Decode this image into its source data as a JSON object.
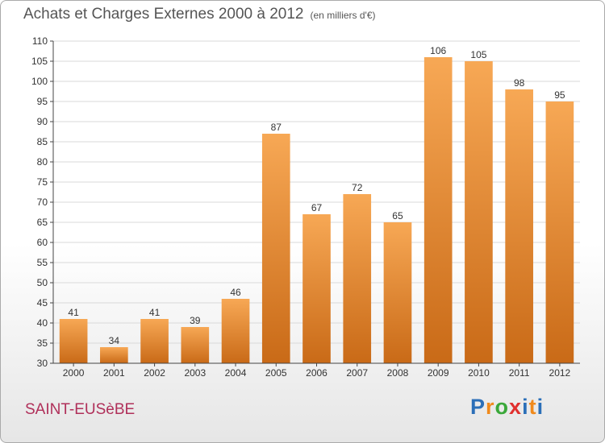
{
  "header": {
    "title": "Achats et Charges Externes 2000 à 2012",
    "subtitle": "(en milliers d'€)"
  },
  "footer": {
    "commune": "SAINT-EUSèBE",
    "logo_letters": [
      "P",
      "r",
      "o",
      "x",
      "i",
      "t",
      "i"
    ]
  },
  "colors": {
    "bar_top": "#f7a855",
    "bar_bottom": "#c96a17",
    "grid": "#d9d9d9",
    "axis": "#444444",
    "label": "#333333"
  },
  "chart_data": {
    "type": "bar",
    "categories": [
      "2000",
      "2001",
      "2002",
      "2003",
      "2004",
      "2005",
      "2006",
      "2007",
      "2008",
      "2009",
      "2010",
      "2011",
      "2012"
    ],
    "values": [
      41,
      34,
      41,
      39,
      46,
      87,
      67,
      72,
      65,
      106,
      105,
      98,
      95
    ],
    "title": "Achats et Charges Externes 2000 à 2012",
    "subtitle": "(en milliers d'€)",
    "xlabel": "",
    "ylabel": "",
    "ylim": [
      30,
      110
    ],
    "yticks": [
      30,
      35,
      40,
      45,
      50,
      55,
      60,
      65,
      70,
      75,
      80,
      85,
      90,
      95,
      100,
      105,
      110
    ],
    "grid": true,
    "legend": "none"
  }
}
